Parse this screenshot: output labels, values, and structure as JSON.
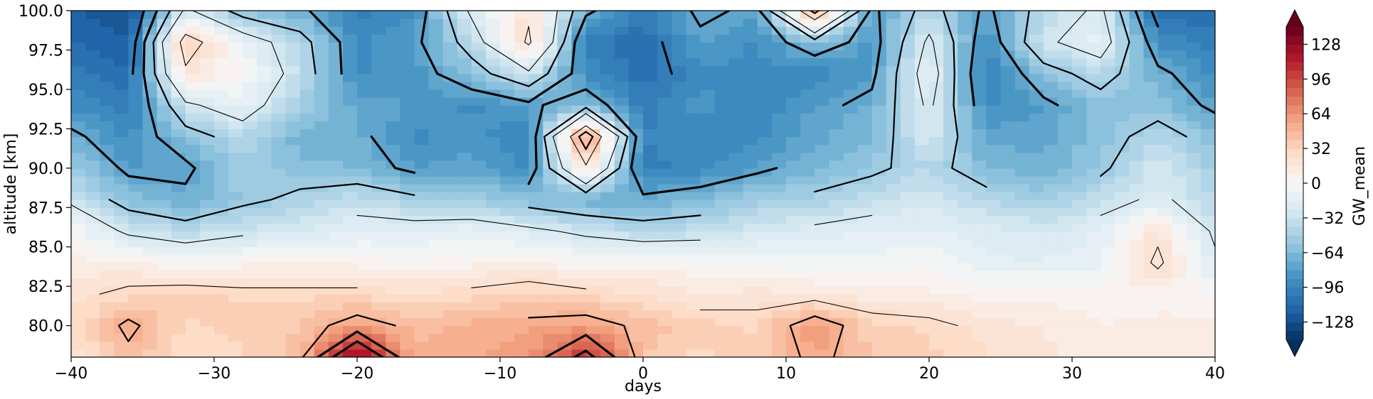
{
  "chart_data": {
    "type": "heatmap",
    "title": "",
    "xlabel": "days",
    "ylabel": "altitude [km]",
    "colorbar_label": "GW_mean",
    "colormap": "RdBu_r",
    "xlim": [
      -40,
      40
    ],
    "ylim": [
      78,
      100
    ],
    "clim": [
      -144,
      144
    ],
    "x_ticks": [
      -40,
      -30,
      -20,
      -10,
      0,
      10,
      20,
      30,
      40
    ],
    "x_tick_labels": [
      "−40",
      "−30",
      "−20",
      "−10",
      "0",
      "10",
      "20",
      "30",
      "40"
    ],
    "y_ticks": [
      80.0,
      82.5,
      85.0,
      87.5,
      90.0,
      92.5,
      95.0,
      97.5,
      100.0
    ],
    "y_tick_labels": [
      "80.0",
      "82.5",
      "85.0",
      "87.5",
      "90.0",
      "92.5",
      "95.0",
      "97.5",
      "100.0"
    ],
    "colorbar_ticks": [
      -128,
      -96,
      -64,
      -32,
      0,
      32,
      64,
      96,
      128
    ],
    "colorbar_tick_labels": [
      "−128",
      "−96",
      "−64",
      "−32",
      "0",
      "32",
      "64",
      "96",
      "128"
    ],
    "altitudes": [
      78,
      80,
      82,
      84,
      86,
      88,
      90,
      92,
      94,
      96,
      98,
      100
    ],
    "days": [
      -40,
      -36,
      -32,
      -28,
      -24,
      -20,
      -16,
      -12,
      -8,
      -4,
      0,
      4,
      8,
      12,
      16,
      20,
      24,
      28,
      32,
      36,
      40
    ],
    "values": [
      [
        20,
        45,
        25,
        30,
        45,
        140,
        50,
        55,
        60,
        110,
        40,
        30,
        35,
        55,
        40,
        35,
        25,
        20,
        10,
        10,
        15
      ],
      [
        25,
        55,
        30,
        35,
        40,
        60,
        45,
        50,
        55,
        60,
        45,
        35,
        30,
        65,
        35,
        30,
        20,
        15,
        8,
        10,
        12
      ],
      [
        20,
        30,
        35,
        30,
        30,
        30,
        25,
        30,
        35,
        30,
        25,
        15,
        20,
        15,
        10,
        10,
        5,
        5,
        5,
        5,
        0
      ],
      [
        10,
        10,
        0,
        5,
        5,
        5,
        0,
        5,
        10,
        0,
        5,
        0,
        0,
        -5,
        -5,
        0,
        -15,
        -15,
        -10,
        30,
        -20
      ],
      [
        0,
        -30,
        -40,
        -30,
        -25,
        -15,
        -15,
        -10,
        -20,
        -30,
        -40,
        -35,
        -25,
        -20,
        -15,
        -15,
        -20,
        -25,
        -15,
        20,
        -30
      ],
      [
        -30,
        -60,
        -70,
        -55,
        -45,
        -35,
        -45,
        -50,
        -60,
        -70,
        -70,
        -65,
        -50,
        -45,
        -35,
        -25,
        -40,
        -50,
        -35,
        -20,
        -40
      ],
      [
        -50,
        -80,
        -80,
        -50,
        -60,
        -65,
        -80,
        -75,
        -90,
        20,
        -100,
        -90,
        -80,
        -65,
        -55,
        -40,
        -65,
        -70,
        -55,
        -25,
        -50
      ],
      [
        -70,
        -90,
        -60,
        -40,
        -70,
        -70,
        -90,
        -85,
        -95,
        70,
        -95,
        -95,
        -90,
        -75,
        -65,
        -25,
        -75,
        -75,
        -60,
        -40,
        -60
      ],
      [
        -90,
        -100,
        -30,
        -10,
        -50,
        -75,
        -80,
        -90,
        -80,
        -60,
        -100,
        -85,
        -95,
        -80,
        -70,
        -20,
        -90,
        -80,
        -60,
        -60,
        -80
      ],
      [
        -100,
        -110,
        20,
        0,
        -35,
        -90,
        -85,
        -60,
        -30,
        -90,
        -110,
        -90,
        -90,
        -95,
        -80,
        -10,
        -100,
        -60,
        -40,
        -70,
        -90
      ],
      [
        -110,
        -120,
        40,
        -10,
        -40,
        -90,
        -80,
        -40,
        30,
        -100,
        -110,
        -80,
        -90,
        -60,
        -85,
        -20,
        -90,
        -30,
        -10,
        -90,
        -100
      ],
      [
        -120,
        -130,
        -20,
        -60,
        -70,
        -100,
        -90,
        -20,
        20,
        -70,
        -100,
        -70,
        -80,
        60,
        -80,
        -40,
        -80,
        -40,
        -20,
        -110,
        -110
      ]
    ]
  }
}
